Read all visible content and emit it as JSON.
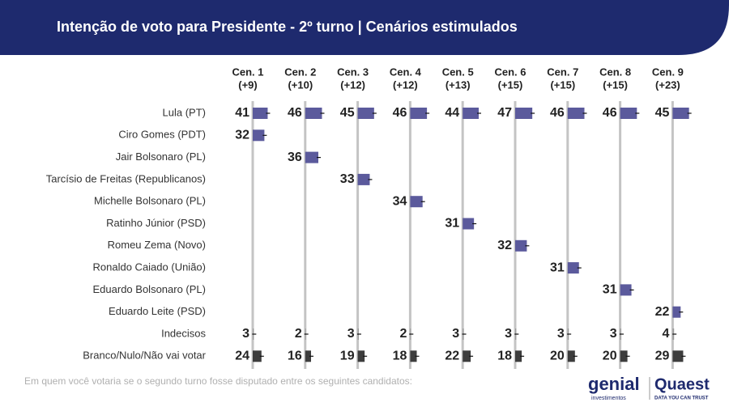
{
  "chart_data": {
    "type": "bar",
    "title": "Intenção de voto para Presidente - 2º turno | Cenários estimulados",
    "categories": [
      "Lula (PT)",
      "Ciro Gomes (PDT)",
      "Jair Bolsonaro (PL)",
      "Tarcísio de Freitas (Republicanos)",
      "Michelle Bolsonaro (PL)",
      "Ratinho Júnior (PSD)",
      "Romeu Zema (Novo)",
      "Ronaldo Caiado (União)",
      "Eduardo Bolsonaro (PL)",
      "Eduardo Leite (PSD)",
      "Indecisos",
      "Branco/Nulo/Não vai votar"
    ],
    "category_colors": [
      "#5b5a9c",
      "#5b5a9c",
      "#5b5a9c",
      "#5b5a9c",
      "#5b5a9c",
      "#5b5a9c",
      "#5b5a9c",
      "#5b5a9c",
      "#5b5a9c",
      "#5b5a9c",
      "#9a9a9a",
      "#3d3d3d"
    ],
    "series": [
      {
        "name": "Cen. 1",
        "margin": "(+9)",
        "values": [
          41,
          32,
          null,
          null,
          null,
          null,
          null,
          null,
          null,
          null,
          3,
          24
        ]
      },
      {
        "name": "Cen. 2",
        "margin": "(+10)",
        "values": [
          46,
          null,
          36,
          null,
          null,
          null,
          null,
          null,
          null,
          null,
          2,
          16
        ]
      },
      {
        "name": "Cen. 3",
        "margin": "(+12)",
        "values": [
          45,
          null,
          null,
          33,
          null,
          null,
          null,
          null,
          null,
          null,
          3,
          19
        ]
      },
      {
        "name": "Cen. 4",
        "margin": "(+12)",
        "values": [
          46,
          null,
          null,
          null,
          34,
          null,
          null,
          null,
          null,
          null,
          2,
          18
        ]
      },
      {
        "name": "Cen. 5",
        "margin": "(+13)",
        "values": [
          44,
          null,
          null,
          null,
          null,
          31,
          null,
          null,
          null,
          null,
          3,
          22
        ]
      },
      {
        "name": "Cen. 6",
        "margin": "(+15)",
        "values": [
          47,
          null,
          null,
          null,
          null,
          null,
          32,
          null,
          null,
          null,
          3,
          18
        ]
      },
      {
        "name": "Cen. 7",
        "margin": "(+15)",
        "values": [
          46,
          null,
          null,
          null,
          null,
          null,
          null,
          31,
          null,
          null,
          3,
          20
        ]
      },
      {
        "name": "Cen. 8",
        "margin": "(+15)",
        "values": [
          46,
          null,
          null,
          null,
          null,
          null,
          null,
          null,
          31,
          null,
          3,
          20
        ]
      },
      {
        "name": "Cen. 9",
        "margin": "(+23)",
        "values": [
          45,
          null,
          null,
          null,
          null,
          null,
          null,
          null,
          null,
          22,
          4,
          29
        ]
      }
    ],
    "footnote": "Em quem você votaria se o segundo turno fosse disputado entre os seguintes candidatos:",
    "logos": [
      "genial",
      "investimentos",
      "Quaest",
      "DATA YOU CAN TRUST"
    ]
  }
}
